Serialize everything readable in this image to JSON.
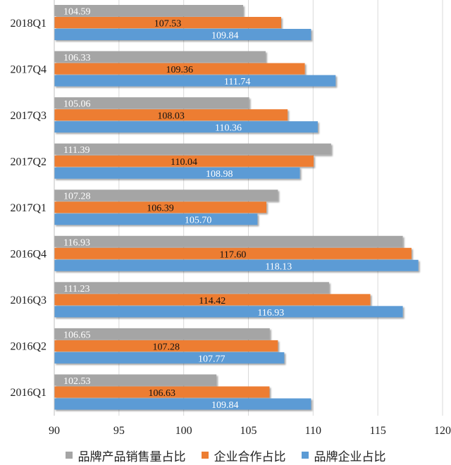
{
  "chart_data": {
    "type": "bar",
    "orientation": "horizontal",
    "categories": [
      "2018Q1",
      "2017Q4",
      "2017Q3",
      "2017Q2",
      "2017Q1",
      "2016Q4",
      "2016Q3",
      "2016Q2",
      "2016Q1"
    ],
    "series": [
      {
        "name": "品牌产品销售量占比",
        "color": "#a5a5a5",
        "values": [
          104.59,
          106.33,
          105.06,
          111.39,
          107.28,
          116.93,
          111.23,
          106.65,
          102.53
        ]
      },
      {
        "name": "企业合作占比",
        "color": "#ed7d31",
        "values": [
          107.53,
          109.36,
          108.03,
          110.04,
          106.39,
          117.6,
          114.42,
          107.28,
          106.63
        ]
      },
      {
        "name": "品牌企业占比",
        "color": "#5b9bd5",
        "values": [
          109.84,
          111.74,
          110.36,
          108.98,
          105.7,
          118.13,
          116.93,
          107.77,
          109.84
        ]
      }
    ],
    "xlim": [
      90,
      120
    ],
    "xticks": [
      90,
      95,
      100,
      105,
      110,
      115,
      120
    ],
    "grid": true,
    "legend_position": "bottom"
  }
}
